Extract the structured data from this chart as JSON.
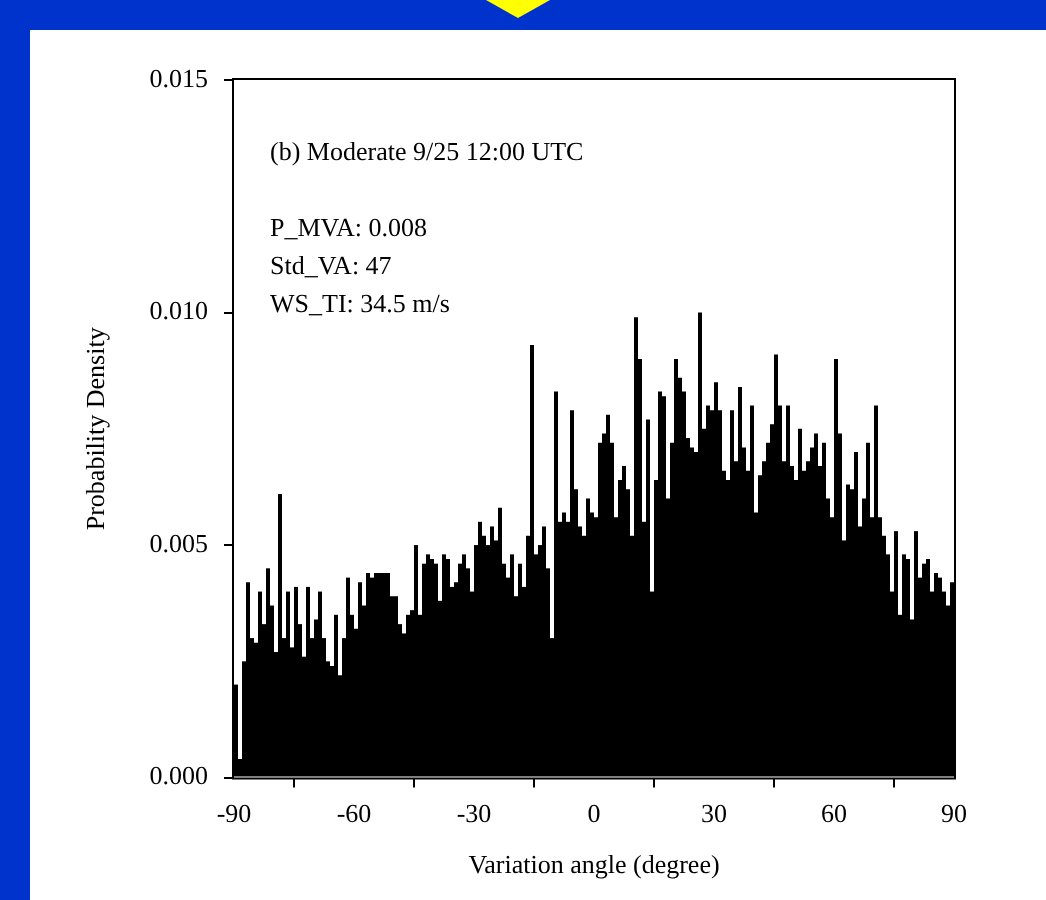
{
  "chart_data": {
    "type": "histogram",
    "annotations": [
      "(b) Moderate 9/25 12:00 UTC",
      "P_MVA: 0.008",
      "Std_VA: 47",
      "WS_TI: 34.5 m/s"
    ],
    "xlabel": "Variation angle (degree)",
    "ylabel": "Probability Density",
    "bins": [
      -90,
      -89,
      -88,
      -87,
      -86,
      -85,
      -84,
      -83,
      -82,
      -81,
      -80,
      -79,
      -78,
      -77,
      -76,
      -75,
      -74,
      -73,
      -72,
      -71,
      -70,
      -69,
      -68,
      -67,
      -66,
      -65,
      -64,
      -63,
      -62,
      -61,
      -60,
      -59,
      -58,
      -57,
      -56,
      -55,
      -54,
      -53,
      -52,
      -51,
      -50,
      -49,
      -48,
      -47,
      -46,
      -45,
      -44,
      -43,
      -42,
      -41,
      -40,
      -39,
      -38,
      -37,
      -36,
      -35,
      -34,
      -33,
      -32,
      -31,
      -30,
      -29,
      -28,
      -27,
      -26,
      -25,
      -24,
      -23,
      -22,
      -21,
      -20,
      -19,
      -18,
      -17,
      -16,
      -15,
      -14,
      -13,
      -12,
      -11,
      -10,
      -9,
      -8,
      -7,
      -6,
      -5,
      -4,
      -3,
      -2,
      -1,
      0,
      1,
      2,
      3,
      4,
      5,
      6,
      7,
      8,
      9,
      10,
      11,
      12,
      13,
      14,
      15,
      16,
      17,
      18,
      19,
      20,
      21,
      22,
      23,
      24,
      25,
      26,
      27,
      28,
      29,
      30,
      31,
      32,
      33,
      34,
      35,
      36,
      37,
      38,
      39,
      40,
      41,
      42,
      43,
      44,
      45,
      46,
      47,
      48,
      49,
      50,
      51,
      52,
      53,
      54,
      55,
      56,
      57,
      58,
      59,
      60,
      61,
      62,
      63,
      64,
      65,
      66,
      67,
      68,
      69,
      70,
      71,
      72,
      73,
      74,
      75,
      76,
      77,
      78,
      79,
      80,
      81,
      82,
      83,
      84,
      85,
      86,
      87,
      88,
      89,
      90
    ],
    "values": [
      0.002,
      0.0004,
      0.0025,
      0.0042,
      0.003,
      0.0029,
      0.004,
      0.0033,
      0.0045,
      0.0037,
      0.0027,
      0.0061,
      0.003,
      0.004,
      0.0028,
      0.0041,
      0.0033,
      0.0026,
      0.0041,
      0.003,
      0.0034,
      0.004,
      0.003,
      0.0025,
      0.0024,
      0.0035,
      0.0022,
      0.003,
      0.0043,
      0.0035,
      0.0032,
      0.0042,
      0.0037,
      0.0044,
      0.0043,
      0.0044,
      0.0044,
      0.0044,
      0.0044,
      0.0039,
      0.0039,
      0.0033,
      0.0031,
      0.0035,
      0.0036,
      0.005,
      0.0035,
      0.0046,
      0.0048,
      0.0047,
      0.0046,
      0.0038,
      0.0048,
      0.0047,
      0.0041,
      0.0042,
      0.0046,
      0.0048,
      0.0045,
      0.004,
      0.005,
      0.0055,
      0.0052,
      0.005,
      0.0054,
      0.0051,
      0.0058,
      0.0046,
      0.0043,
      0.0048,
      0.0039,
      0.0046,
      0.0041,
      0.0052,
      0.0093,
      0.0048,
      0.005,
      0.0054,
      0.0045,
      0.003,
      0.0083,
      0.0055,
      0.0057,
      0.0055,
      0.0079,
      0.0062,
      0.0054,
      0.0052,
      0.006,
      0.0057,
      0.0056,
      0.0072,
      0.0074,
      0.0078,
      0.0072,
      0.0056,
      0.0064,
      0.0067,
      0.0062,
      0.0052,
      0.0099,
      0.009,
      0.0055,
      0.0077,
      0.004,
      0.0064,
      0.0083,
      0.0082,
      0.006,
      0.0072,
      0.009,
      0.0086,
      0.0083,
      0.0073,
      0.0071,
      0.007,
      0.01,
      0.0075,
      0.008,
      0.0079,
      0.0085,
      0.0079,
      0.0066,
      0.0064,
      0.0079,
      0.0068,
      0.0084,
      0.0071,
      0.0066,
      0.008,
      0.0057,
      0.0065,
      0.0068,
      0.0072,
      0.0076,
      0.0091,
      0.008,
      0.0068,
      0.008,
      0.0067,
      0.0064,
      0.0075,
      0.0066,
      0.0068,
      0.0071,
      0.0074,
      0.0067,
      0.0072,
      0.006,
      0.0056,
      0.009,
      0.0074,
      0.0051,
      0.0063,
      0.0062,
      0.007,
      0.0054,
      0.006,
      0.0072,
      0.0056,
      0.008,
      0.0056,
      0.0052,
      0.0048,
      0.004,
      0.0053,
      0.0035,
      0.0048,
      0.0047,
      0.0034,
      0.0053,
      0.0043,
      0.0046,
      0.0047,
      0.004,
      0.0044,
      0.0043,
      0.004,
      0.0037,
      0.0042
    ],
    "color": "#000000",
    "xlim": [
      -90,
      90
    ],
    "xticks": [
      -90,
      -60,
      -30,
      0,
      30,
      60,
      90
    ],
    "ylim": [
      0,
      0.015
    ],
    "yticks": [
      {
        "value": 0,
        "label": "0.000"
      },
      {
        "value": 0.005,
        "label": "0.005"
      },
      {
        "value": 0.01,
        "label": "0.010"
      },
      {
        "value": 0.015,
        "label": "0.015"
      }
    ],
    "grid": false,
    "legend": false
  }
}
